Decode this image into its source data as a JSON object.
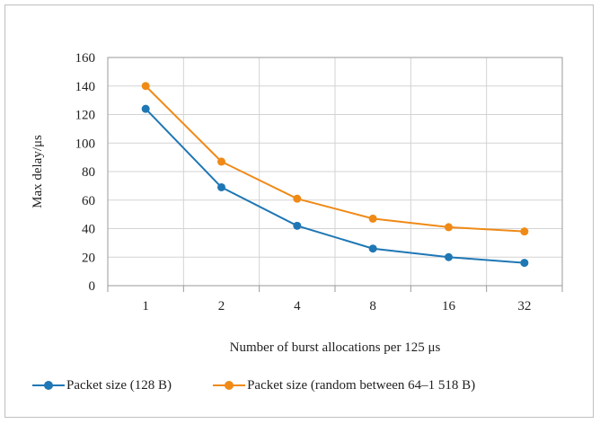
{
  "chart_data": {
    "type": "line",
    "categories": [
      "1",
      "2",
      "4",
      "8",
      "16",
      "32"
    ],
    "xlabel": "Number of burst allocations per 125 μs",
    "ylabel": "Max delay/μs",
    "ylim": [
      0,
      160
    ],
    "yticks": [
      0,
      20,
      40,
      60,
      80,
      100,
      120,
      140,
      160
    ],
    "grid": true,
    "legend_position": "bottom",
    "series": [
      {
        "name": "Packet size (128 B)",
        "color": "#1f77b4",
        "values": [
          124,
          69,
          42,
          26,
          20,
          16
        ]
      },
      {
        "name": "Packet size (random between 64–1 518 B)",
        "color": "#ef8a17",
        "values": [
          140,
          87,
          61,
          47,
          41,
          38
        ]
      }
    ]
  }
}
